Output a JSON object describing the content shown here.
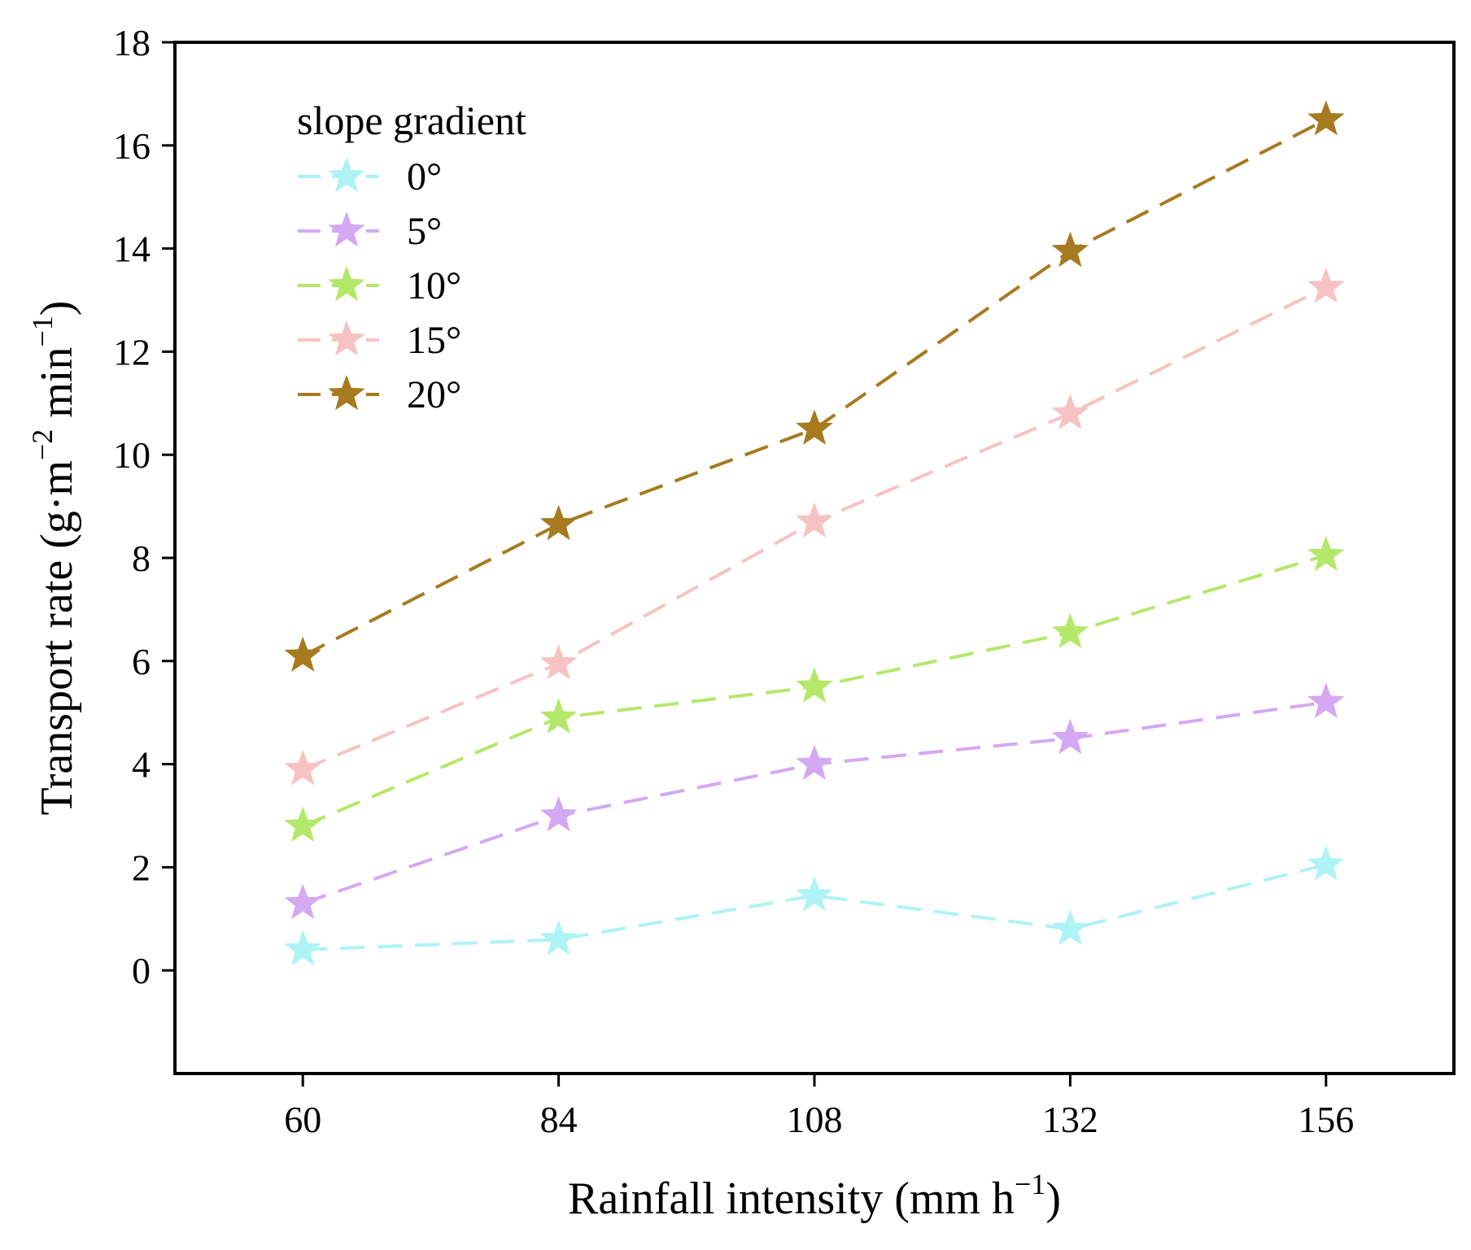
{
  "chart_data": {
    "type": "line",
    "marker": "star",
    "line_style": "dashed",
    "x": [
      60,
      84,
      108,
      132,
      156
    ],
    "x_tick_labels": [
      "60",
      "84",
      "108",
      "132",
      "156"
    ],
    "y_ticks": [
      0,
      2,
      4,
      6,
      8,
      10,
      12,
      14,
      16,
      18
    ],
    "y_tick_labels": [
      "0",
      "2",
      "4",
      "6",
      "8",
      "10",
      "12",
      "14",
      "16",
      "18"
    ],
    "xlim": [
      48,
      168
    ],
    "ylim": [
      -2,
      18
    ],
    "xlabel": {
      "main": "Rainfall intensity (mm h",
      "sup": "−1",
      "tail": ")"
    },
    "ylabel": {
      "pre": "Transport rate (g·m",
      "sup1": "−2",
      "mid": " min",
      "sup2": "−1",
      "tail": ")"
    },
    "legend": {
      "title": "slope gradient",
      "position": "top-left"
    },
    "series": [
      {
        "name": "0°",
        "color": "#aef3f5",
        "values": [
          0.4,
          0.6,
          1.45,
          0.8,
          2.05
        ]
      },
      {
        "name": "5°",
        "color": "#d5a8f2",
        "values": [
          1.3,
          3.0,
          4.0,
          4.5,
          5.2
        ]
      },
      {
        "name": "10°",
        "color": "#b4e86a",
        "values": [
          2.8,
          4.9,
          5.5,
          6.55,
          8.05
        ]
      },
      {
        "name": "15°",
        "color": "#f7c2c2",
        "values": [
          3.9,
          5.95,
          8.7,
          10.8,
          13.25
        ]
      },
      {
        "name": "20°",
        "color": "#a77a20",
        "values": [
          6.1,
          8.65,
          10.5,
          13.95,
          16.5
        ]
      }
    ]
  }
}
